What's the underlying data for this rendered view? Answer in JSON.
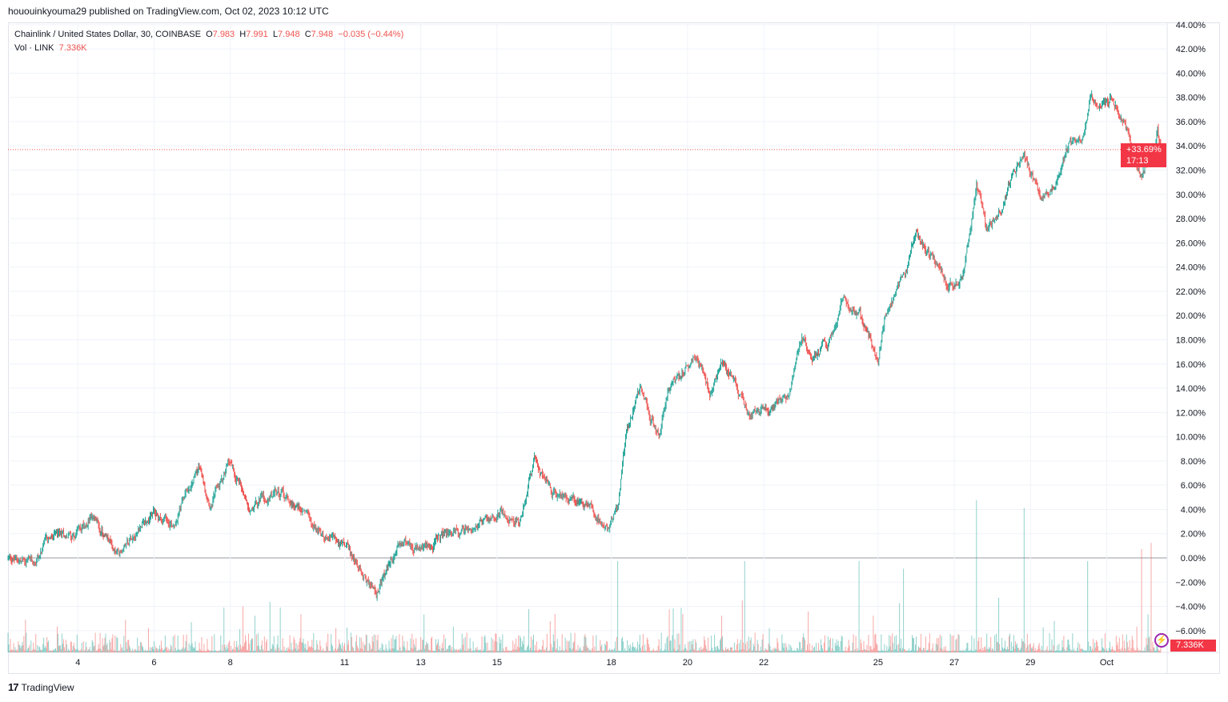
{
  "header": {
    "published": "hououinkyouma29 published on TradingView.com, Oct 02, 2023 10:12 UTC"
  },
  "legend": {
    "symbol": "Chainlink / United States Dollar, 30, COINBASE",
    "o_label": "O",
    "o": "7.983",
    "h_label": "H",
    "h": "7.991",
    "l_label": "L",
    "l": "7.948",
    "c_label": "C",
    "c": "7.948",
    "change": "−0.035 (−0.44%)",
    "vol_label": "Vol · LINK",
    "vol": "7.336K"
  },
  "badges": {
    "price_change": "+33.69%",
    "countdown": "17:13",
    "volume": "7.336K"
  },
  "footer": {
    "logo_text": "TradingView"
  },
  "colors": {
    "up": "#26a69a",
    "down": "#ef5350",
    "badge": "#f23645",
    "grid": "#f0f3fa",
    "accent": "#9c27b0"
  },
  "chart_data": {
    "type": "candlestick",
    "interval": "30 min",
    "y_scale": "percent",
    "ylim": [
      -7,
      44
    ],
    "y_ticks": [
      "44.00%",
      "42.00%",
      "40.00%",
      "38.00%",
      "36.00%",
      "34.00%",
      "32.00%",
      "30.00%",
      "28.00%",
      "26.00%",
      "24.00%",
      "22.00%",
      "20.00%",
      "18.00%",
      "16.00%",
      "14.00%",
      "12.00%",
      "10.00%",
      "8.00%",
      "6.00%",
      "4.00%",
      "2.00%",
      "0.00%",
      "−2.00%",
      "−4.00%",
      "−6.00%"
    ],
    "x_ticks": [
      {
        "label": "4",
        "date": "2023-09-04"
      },
      {
        "label": "6",
        "date": "2023-09-06"
      },
      {
        "label": "8",
        "date": "2023-09-08"
      },
      {
        "label": "11",
        "date": "2023-09-11"
      },
      {
        "label": "13",
        "date": "2023-09-13"
      },
      {
        "label": "15",
        "date": "2023-09-15"
      },
      {
        "label": "18",
        "date": "2023-09-18"
      },
      {
        "label": "20",
        "date": "2023-09-20"
      },
      {
        "label": "22",
        "date": "2023-09-22"
      },
      {
        "label": "25",
        "date": "2023-09-25"
      },
      {
        "label": "27",
        "date": "2023-09-27"
      },
      {
        "label": "29",
        "date": "2023-09-29"
      },
      {
        "label": "Oct",
        "date": "2023-10-01"
      }
    ],
    "x_range": [
      "2023-09-02T04:00",
      "2023-10-02T10:00"
    ],
    "current_value_pct": 33.69,
    "price_path_pct": [
      [
        "2023-09-02T04:00",
        0
      ],
      [
        "2023-09-02T20:00",
        -0.5
      ],
      [
        "2023-09-03T06:00",
        1.5
      ],
      [
        "2023-09-03T22:00",
        2
      ],
      [
        "2023-09-04T08:00",
        3.5
      ],
      [
        "2023-09-05T02:00",
        0
      ],
      [
        "2023-09-05T12:00",
        2.5
      ],
      [
        "2023-09-06T00:00",
        3.5
      ],
      [
        "2023-09-06T12:00",
        3
      ],
      [
        "2023-09-07T04:00",
        7.5
      ],
      [
        "2023-09-07T12:00",
        4.5
      ],
      [
        "2023-09-08T00:00",
        8
      ],
      [
        "2023-09-08T12:00",
        4.5
      ],
      [
        "2023-09-09T04:00",
        5.5
      ],
      [
        "2023-09-10T00:00",
        4
      ],
      [
        "2023-09-10T10:00",
        2
      ],
      [
        "2023-09-11T00:00",
        1
      ],
      [
        "2023-09-11T10:00",
        -1
      ],
      [
        "2023-09-11T20:00",
        -3
      ],
      [
        "2023-09-12T12:00",
        1.5
      ],
      [
        "2023-09-13T00:00",
        0.5
      ],
      [
        "2023-09-13T16:00",
        2
      ],
      [
        "2023-09-14T12:00",
        2.5
      ],
      [
        "2023-09-15T02:00",
        4
      ],
      [
        "2023-09-15T14:00",
        3
      ],
      [
        "2023-09-16T00:00",
        8
      ],
      [
        "2023-09-16T10:00",
        5
      ],
      [
        "2023-09-16T20:00",
        5
      ],
      [
        "2023-09-17T12:00",
        4
      ],
      [
        "2023-09-17T22:00",
        2.5
      ],
      [
        "2023-09-18T04:00",
        4
      ],
      [
        "2023-09-18T10:00",
        11
      ],
      [
        "2023-09-18T18:00",
        14
      ],
      [
        "2023-09-19T06:00",
        10
      ],
      [
        "2023-09-19T12:00",
        14
      ],
      [
        "2023-09-20T00:00",
        16
      ],
      [
        "2023-09-20T06:00",
        17
      ],
      [
        "2023-09-20T14:00",
        14
      ],
      [
        "2023-09-20T22:00",
        16.5
      ],
      [
        "2023-09-21T08:00",
        13.5
      ],
      [
        "2023-09-21T14:00",
        11.5
      ],
      [
        "2023-09-22T04:00",
        12
      ],
      [
        "2023-09-22T16:00",
        13.5
      ],
      [
        "2023-09-23T00:00",
        18.5
      ],
      [
        "2023-09-23T06:00",
        17
      ],
      [
        "2023-09-23T16:00",
        17.5
      ],
      [
        "2023-09-24T02:00",
        21.5
      ],
      [
        "2023-09-24T16:00",
        19
      ],
      [
        "2023-09-25T00:00",
        16.5
      ],
      [
        "2023-09-25T04:00",
        20
      ],
      [
        "2023-09-25T16:00",
        23
      ],
      [
        "2023-09-26T00:00",
        26.5
      ],
      [
        "2023-09-26T08:00",
        25
      ],
      [
        "2023-09-26T20:00",
        22.5
      ],
      [
        "2023-09-27T06:00",
        23.5
      ],
      [
        "2023-09-27T14:00",
        31
      ],
      [
        "2023-09-27T20:00",
        27
      ],
      [
        "2023-09-28T06:00",
        29
      ],
      [
        "2023-09-28T12:00",
        31
      ],
      [
        "2023-09-28T20:00",
        33
      ],
      [
        "2023-09-29T06:00",
        30
      ],
      [
        "2023-09-29T16:00",
        31
      ],
      [
        "2023-09-30T00:00",
        34
      ],
      [
        "2023-09-30T08:00",
        35
      ],
      [
        "2023-09-30T14:00",
        38
      ],
      [
        "2023-09-30T22:00",
        37.5
      ],
      [
        "2023-10-01T02:00",
        38
      ],
      [
        "2023-10-01T10:00",
        36.5
      ],
      [
        "2023-10-01T16:00",
        33.5
      ],
      [
        "2023-10-01T22:00",
        31
      ],
      [
        "2023-10-02T02:00",
        33
      ],
      [
        "2023-10-02T06:00",
        33
      ],
      [
        "2023-10-02T08:00",
        35.5
      ],
      [
        "2023-10-02T10:00",
        33.69
      ]
    ],
    "volume_spikes": [
      [
        "2023-09-27T14:00",
        1
      ],
      [
        "2023-09-28T20:00",
        0.95
      ],
      [
        "2023-09-18T04:00",
        0.6
      ],
      [
        "2023-09-24T12:00",
        0.6
      ],
      [
        "2023-09-21T12:00",
        0.6
      ],
      [
        "2023-09-30T12:00",
        0.6
      ],
      [
        "2023-10-02T04:00",
        0.72
      ],
      [
        "2023-10-01T22:00",
        0.68
      ],
      [
        "2023-09-28T04:00",
        0.36
      ],
      [
        "2023-09-25T16:00",
        0.55
      ]
    ]
  }
}
